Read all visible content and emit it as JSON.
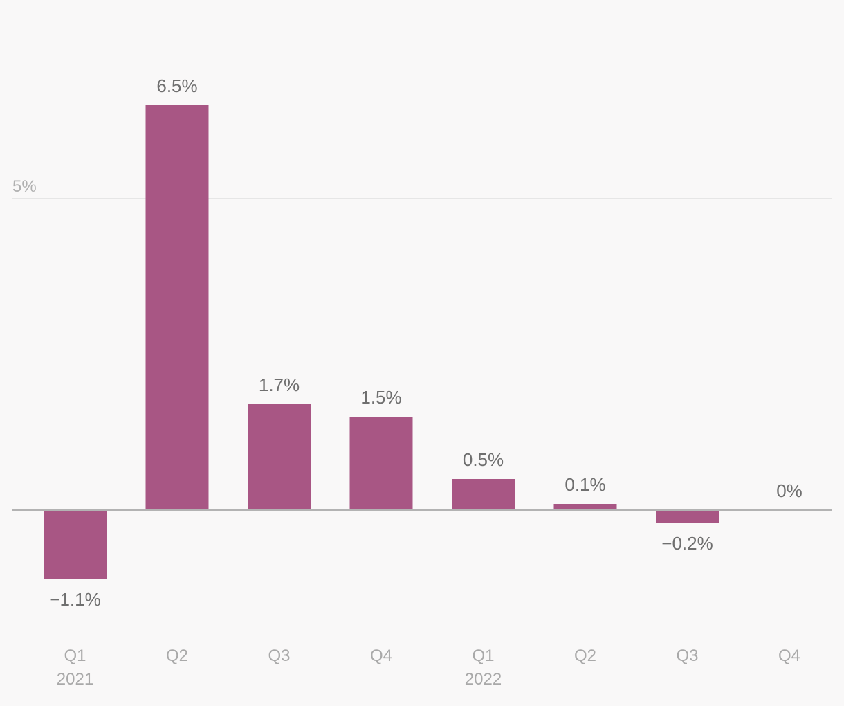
{
  "chart_data": {
    "type": "bar",
    "title": "",
    "xlabel": "",
    "ylabel": "",
    "categories": [
      "Q1",
      "Q2",
      "Q3",
      "Q4",
      "Q1",
      "Q2",
      "Q3",
      "Q4"
    ],
    "years": [
      "2021",
      "",
      "",
      "",
      "2022",
      "",
      "",
      ""
    ],
    "values": [
      -1.1,
      6.5,
      1.7,
      1.5,
      0.5,
      0.1,
      -0.2,
      0
    ],
    "value_labels": [
      "−1.1%",
      "6.5%",
      "1.7%",
      "1.5%",
      "0.5%",
      "0.1%",
      "−0.2%",
      "0%"
    ],
    "ylim": [
      -2,
      8
    ],
    "y_gridlines": [
      5
    ],
    "y_tick_labels": [
      "5%"
    ],
    "bar_color": "#a85684"
  }
}
